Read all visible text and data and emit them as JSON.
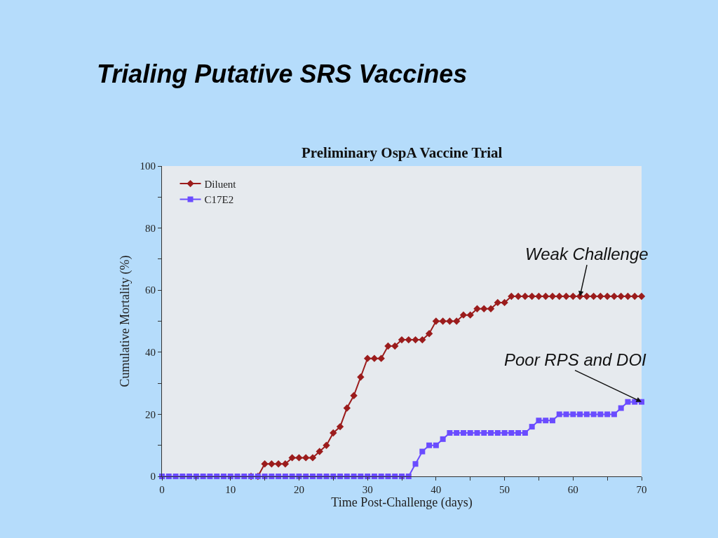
{
  "chart_data": {
    "type": "line",
    "title": "Trialing Putative SRS Vaccines",
    "subtitle": "Preliminary OspA Vaccine Trial",
    "xlabel": "Time Post-Challenge (days)",
    "ylabel": "Cumulative Mortality (%)",
    "x": [
      0,
      1,
      2,
      3,
      4,
      5,
      6,
      7,
      8,
      9,
      10,
      11,
      12,
      13,
      14,
      15,
      16,
      17,
      18,
      19,
      20,
      21,
      22,
      23,
      24,
      25,
      26,
      27,
      28,
      29,
      30,
      31,
      32,
      33,
      34,
      35,
      36,
      37,
      38,
      39,
      40,
      41,
      42,
      43,
      44,
      45,
      46,
      47,
      48,
      49,
      50,
      51,
      52,
      53,
      54,
      55,
      56,
      57,
      58,
      59,
      60,
      61,
      62,
      63,
      64,
      65,
      66,
      67,
      68,
      69,
      70
    ],
    "series": [
      {
        "name": "Diluent",
        "color": "#9b1c1c",
        "marker": "diamond",
        "values": [
          null,
          null,
          null,
          null,
          null,
          null,
          null,
          null,
          null,
          null,
          null,
          null,
          null,
          0,
          0,
          4,
          4,
          4,
          4,
          6,
          6,
          6,
          6,
          8,
          10,
          14,
          16,
          22,
          26,
          32,
          38,
          38,
          38,
          42,
          42,
          44,
          44,
          44,
          44,
          46,
          50,
          50,
          50,
          50,
          52,
          52,
          54,
          54,
          54,
          56,
          56,
          58,
          58,
          58,
          58,
          58,
          58,
          58,
          58,
          58,
          58,
          58,
          58,
          58,
          58,
          58,
          58,
          58,
          58,
          58,
          58
        ]
      },
      {
        "name": "C17E2",
        "color": "#6a4cff",
        "marker": "square",
        "values": [
          0,
          0,
          0,
          0,
          0,
          0,
          0,
          0,
          0,
          0,
          0,
          0,
          0,
          0,
          0,
          0,
          0,
          0,
          0,
          0,
          0,
          0,
          0,
          0,
          0,
          0,
          0,
          0,
          0,
          0,
          0,
          0,
          0,
          0,
          0,
          0,
          0,
          4,
          8,
          10,
          10,
          12,
          14,
          14,
          14,
          14,
          14,
          14,
          14,
          14,
          14,
          14,
          14,
          14,
          16,
          18,
          18,
          18,
          20,
          20,
          20,
          20,
          20,
          20,
          20,
          20,
          20,
          22,
          24,
          24,
          24
        ]
      }
    ],
    "xlim": [
      0,
      70
    ],
    "xticks": [
      0,
      {
        "value": 5,
        "label": null
      },
      10,
      {
        "value": 15,
        "label": null
      },
      20,
      {
        "value": 25,
        "label": null
      },
      30,
      {
        "value": 35,
        "label": null
      },
      40,
      {
        "value": 45,
        "label": null
      },
      50,
      {
        "value": 55,
        "label": null
      },
      60,
      {
        "value": 65,
        "label": null
      },
      70
    ],
    "ylim": [
      0,
      100
    ],
    "yticks": [
      0,
      {
        "value": 10,
        "label": null
      },
      20,
      {
        "value": 30,
        "label": null
      },
      40,
      {
        "value": 50,
        "label": null
      },
      60,
      {
        "value": 70,
        "label": null
      },
      80,
      {
        "value": 90,
        "label": null
      },
      100
    ],
    "grid": false,
    "legend": "top left",
    "line_style": "solid",
    "annotations": [
      {
        "text": "Weak Challenge",
        "x": 61,
        "y": 58
      },
      {
        "text": "Poor RPS and DOI",
        "x": 70,
        "y": 24
      }
    ]
  }
}
